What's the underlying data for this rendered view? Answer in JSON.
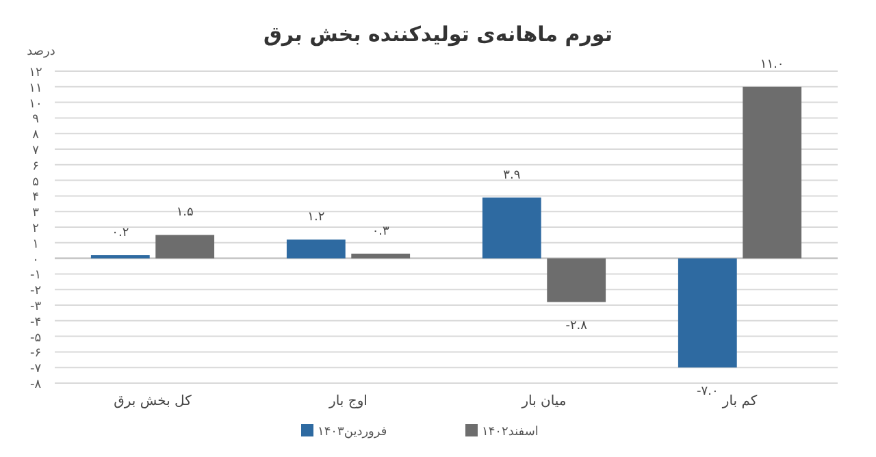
{
  "chart_data": {
    "type": "bar",
    "title": "تورم ماهانه‌ی تولیدکننده بخش برق",
    "ylabel": "درصد",
    "categories": [
      "کل بخش برق",
      "اوج بار",
      "میان بار",
      "کم بار"
    ],
    "series": [
      {
        "name": "فروردین۱۴۰۳",
        "color": "#2e6aa1",
        "values": [
          0.2,
          1.2,
          3.9,
          -7.0
        ],
        "value_labels": [
          "۰.۲",
          "۱.۲",
          "۳.۹",
          "-۷.۰"
        ]
      },
      {
        "name": "اسفند۱۴۰۲",
        "color": "#6d6d6d",
        "values": [
          1.5,
          0.3,
          -2.8,
          11.0
        ],
        "value_labels": [
          "۱.۵",
          "۰.۳",
          "-۲.۸",
          "۱۱.۰"
        ]
      }
    ],
    "ylim": [
      -8,
      12
    ],
    "yticks": [
      {
        "value": -8,
        "label": "-۸"
      },
      {
        "value": -7,
        "label": "-۷"
      },
      {
        "value": -6,
        "label": "-۶"
      },
      {
        "value": -5,
        "label": "-۵"
      },
      {
        "value": -4,
        "label": "-۴"
      },
      {
        "value": -3,
        "label": "-۳"
      },
      {
        "value": -2,
        "label": "-۲"
      },
      {
        "value": -1,
        "label": "-۱"
      },
      {
        "value": 0,
        "label": "۰"
      },
      {
        "value": 1,
        "label": "۱"
      },
      {
        "value": 2,
        "label": "۲"
      },
      {
        "value": 3,
        "label": "۳"
      },
      {
        "value": 4,
        "label": "۴"
      },
      {
        "value": 5,
        "label": "۵"
      },
      {
        "value": 6,
        "label": "۶"
      },
      {
        "value": 7,
        "label": "۷"
      },
      {
        "value": 8,
        "label": "۸"
      },
      {
        "value": 9,
        "label": "۹"
      },
      {
        "value": 10,
        "label": "۱۰"
      },
      {
        "value": 11,
        "label": "۱۱"
      },
      {
        "value": 12,
        "label": "۱۲"
      }
    ],
    "grid": "y",
    "legend": "bottom"
  }
}
